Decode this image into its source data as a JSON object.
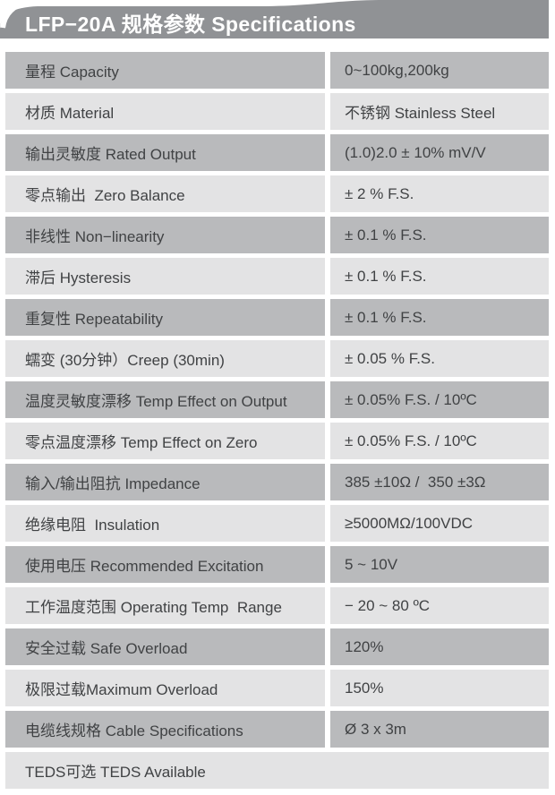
{
  "page": {
    "title": "LFP−20A 规格参数 Specifications"
  },
  "colors": {
    "header_bg": "#909295",
    "row_dark": "#b9babc",
    "row_light": "#e3e3e4",
    "text": "#404244",
    "title_text": "#ffffff"
  },
  "table": {
    "rows": [
      {
        "label": "量程 Capacity",
        "value": "0~100kg,200kg"
      },
      {
        "label": "材质 Material",
        "value": "不锈钢 Stainless Steel"
      },
      {
        "label": "输出灵敏度 Rated Output",
        "value": "(1.0)2.0 ± 10% mV/V"
      },
      {
        "label": "零点输出  Zero Balance",
        "value": "± 2 % F.S."
      },
      {
        "label": "非线性 Non−linearity",
        "value": "± 0.1 % F.S."
      },
      {
        "label": "滞后 Hysteresis",
        "value": "± 0.1 % F.S."
      },
      {
        "label": "重复性 Repeatability",
        "value": "± 0.1 % F.S."
      },
      {
        "label": "蠕变 (30分钟）Creep (30min)",
        "value": "± 0.05 % F.S."
      },
      {
        "label": "温度灵敏度漂移 Temp Effect on Output",
        "value": "± 0.05% F.S. / 10ºC"
      },
      {
        "label": "零点温度漂移 Temp Effect on Zero",
        "value": "± 0.05% F.S. / 10ºC"
      },
      {
        "label": "输入/输出阻抗 Impedance",
        "value": "385 ±10Ω /  350 ±3Ω"
      },
      {
        "label": "绝缘电阻  Insulation",
        "value": "≥5000MΩ/100VDC"
      },
      {
        "label": "使用电压 Recommended Excitation",
        "value": "5 ~ 10V"
      },
      {
        "label": "工作温度范围 Operating Temp  Range",
        "value": "− 20 ~ 80 ºC"
      },
      {
        "label": "安全过载 Safe Overload",
        "value": "120%"
      },
      {
        "label": "极限过载Maximum Overload",
        "value": "150%"
      },
      {
        "label": "电缆线规格 Cable Specifications",
        "value": "Ø 3 x 3m"
      },
      {
        "label": "TEDS可选 TEDS Available"
      }
    ]
  }
}
